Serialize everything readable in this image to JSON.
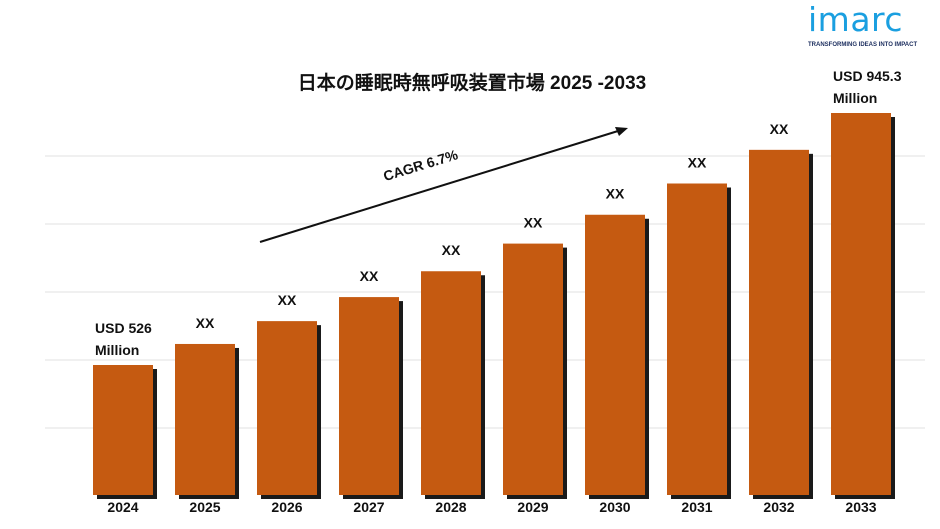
{
  "logo": {
    "word": "imarc",
    "tagline": "TRANSFORMING IDEAS INTO IMPACT"
  },
  "chart_data": {
    "type": "bar",
    "title": "日本の睡眠時無呼吸装置市場 2025 -2033",
    "categories": [
      "2024",
      "2025",
      "2026",
      "2027",
      "2028",
      "2029",
      "2030",
      "2031",
      "2032",
      "2033"
    ],
    "values": [
      526,
      561,
      599,
      639,
      682,
      728,
      776,
      828,
      884,
      945.3
    ],
    "data_labels": [
      [
        "USD 526",
        "Million"
      ],
      [
        "XX"
      ],
      [
        "XX"
      ],
      [
        "XX"
      ],
      [
        "XX"
      ],
      [
        "XX"
      ],
      [
        "XX"
      ],
      [
        "XX"
      ],
      [
        "XX"
      ],
      [
        "USD 945.3",
        "Million"
      ]
    ],
    "annotation": "CAGR 6.7%",
    "bar_color": "#c55a11",
    "grid": true,
    "legend": "none",
    "ylim": [
      0,
      1000
    ]
  }
}
